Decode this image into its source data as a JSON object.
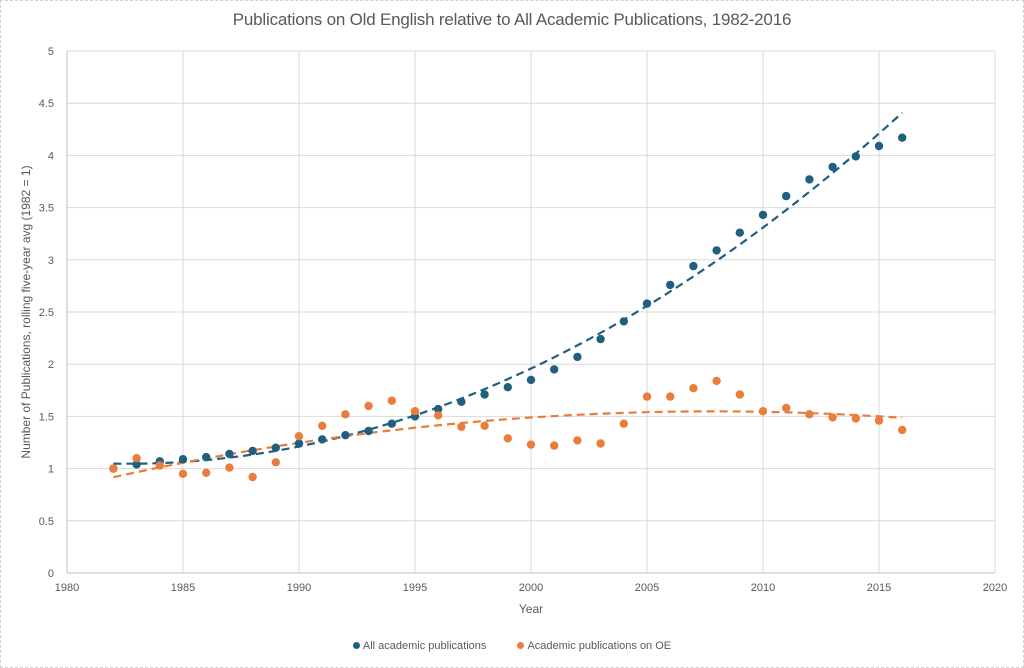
{
  "chart_data": {
    "type": "scatter",
    "title": "Publications on Old English relative to All Academic Publications, 1982-2016",
    "xlabel": "Year",
    "ylabel": "Number of Publications, rolling five-year avg  (1982 = 1)",
    "xlim": [
      1980,
      2020
    ],
    "ylim": [
      0,
      5
    ],
    "x_ticks": [
      "1980",
      "1985",
      "1990",
      "1995",
      "2000",
      "2005",
      "2010",
      "2015",
      "2020"
    ],
    "y_ticks": [
      "0",
      "0.5",
      "1",
      "1.5",
      "2",
      "2.5",
      "3",
      "3.5",
      "4",
      "4.5",
      "5"
    ],
    "grid": true,
    "legend_position": "bottom",
    "x": [
      1982,
      1983,
      1984,
      1985,
      1986,
      1987,
      1988,
      1989,
      1990,
      1991,
      1992,
      1993,
      1994,
      1995,
      1996,
      1997,
      1998,
      1999,
      2000,
      2001,
      2002,
      2003,
      2004,
      2005,
      2006,
      2007,
      2008,
      2009,
      2010,
      2011,
      2012,
      2013,
      2014,
      2015,
      2016
    ],
    "series": [
      {
        "name": "All academic publications",
        "color": "#1f5f7f",
        "trendline": "polynomial-2",
        "values": [
          1.0,
          1.04,
          1.07,
          1.09,
          1.11,
          1.14,
          1.17,
          1.2,
          1.24,
          1.28,
          1.32,
          1.36,
          1.43,
          1.5,
          1.57,
          1.64,
          1.71,
          1.78,
          1.85,
          1.95,
          2.07,
          2.24,
          2.41,
          2.58,
          2.76,
          2.94,
          3.09,
          3.26,
          3.43,
          3.61,
          3.77,
          3.89,
          3.99,
          4.09,
          4.17
        ]
      },
      {
        "name": "Academic publications on OE",
        "color": "#e97d3c",
        "trendline": "polynomial-2",
        "values": [
          1.0,
          1.1,
          1.03,
          0.95,
          0.96,
          1.01,
          0.92,
          1.06,
          1.31,
          1.41,
          1.52,
          1.6,
          1.65,
          1.55,
          1.51,
          1.4,
          1.41,
          1.29,
          1.23,
          1.22,
          1.27,
          1.24,
          1.43,
          1.69,
          1.69,
          1.77,
          1.84,
          1.71,
          1.55,
          1.58,
          1.52,
          1.49,
          1.48,
          1.46,
          1.37
        ]
      }
    ]
  }
}
